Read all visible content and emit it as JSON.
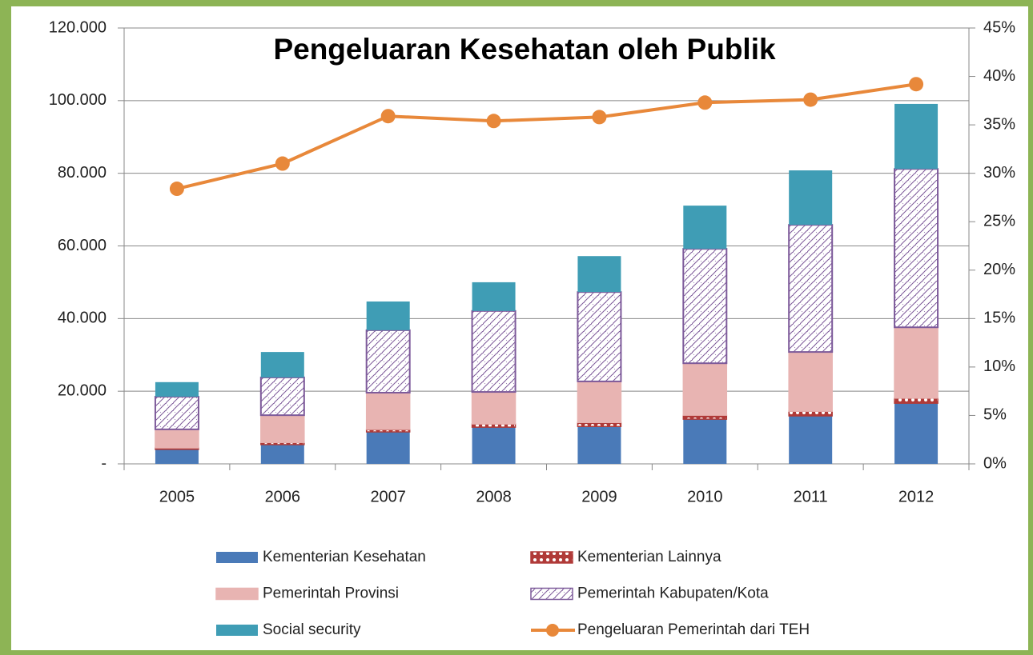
{
  "chart_data": {
    "type": "bar",
    "stacked": true,
    "title": "Pengeluaran Kesehatan oleh Publik",
    "categories": [
      "2005",
      "2006",
      "2007",
      "2008",
      "2009",
      "2010",
      "2011",
      "2012"
    ],
    "ylim": [
      0,
      120000
    ],
    "yticks": [
      {
        "value": 0,
        "label": "-"
      },
      {
        "value": 20000,
        "label": "20.000"
      },
      {
        "value": 40000,
        "label": "40.000"
      },
      {
        "value": 60000,
        "label": "60.000"
      },
      {
        "value": 80000,
        "label": "80.000"
      },
      {
        "value": 100000,
        "label": "100.000"
      },
      {
        "value": 120000,
        "label": "120.000"
      }
    ],
    "y2lim": [
      0,
      45
    ],
    "y2ticks": [
      {
        "value": 0,
        "label": "0%"
      },
      {
        "value": 5,
        "label": "5%"
      },
      {
        "value": 10,
        "label": "10%"
      },
      {
        "value": 15,
        "label": "15%"
      },
      {
        "value": 20,
        "label": "20%"
      },
      {
        "value": 25,
        "label": "25%"
      },
      {
        "value": 30,
        "label": "30%"
      },
      {
        "value": 35,
        "label": "35%"
      },
      {
        "value": 40,
        "label": "40%"
      },
      {
        "value": 45,
        "label": "45%"
      }
    ],
    "grid": true,
    "legend": "bottom",
    "series": [
      {
        "name": "Kementerian Kesehatan",
        "color": "#4a7ab8",
        "values": [
          4000,
          5300,
          8800,
          10100,
          10300,
          12300,
          13200,
          16700
        ]
      },
      {
        "name": "Kementerian Lainnya",
        "color": "#b03a38",
        "pattern": "dots",
        "values": [
          400,
          600,
          700,
          900,
          1100,
          1100,
          1300,
          1400
        ]
      },
      {
        "name": "Pemerintah Provinsi",
        "color": "#e8b4b2",
        "values": [
          5100,
          7500,
          10100,
          8800,
          11300,
          14300,
          16300,
          19500
        ]
      },
      {
        "name": "Pemerintah Kabupaten/Kota",
        "color": "#7d5a9a",
        "pattern": "hatch",
        "values": [
          9000,
          10400,
          17200,
          22300,
          24600,
          31500,
          35000,
          43600
        ]
      },
      {
        "name": "Social security",
        "color": "#3f9db5",
        "values": [
          4000,
          7000,
          7900,
          7900,
          9900,
          11900,
          15000,
          17900
        ]
      },
      {
        "name": "Pengeluaran Pemerintah dari TEH",
        "type": "line",
        "axis": "y2",
        "color": "#e8883a",
        "values": [
          28.4,
          31.0,
          35.9,
          35.4,
          35.8,
          37.3,
          37.6,
          39.2
        ]
      }
    ]
  }
}
